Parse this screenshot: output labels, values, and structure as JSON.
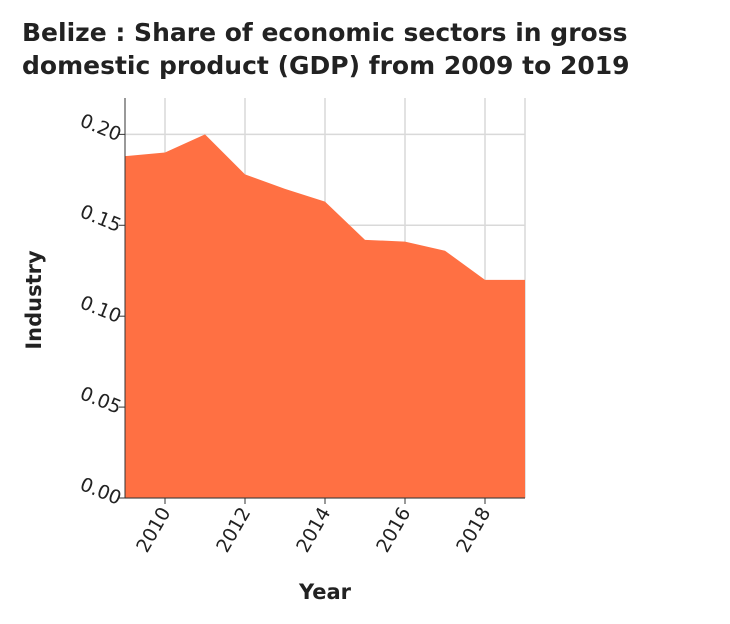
{
  "chart_data": {
    "type": "area",
    "title": "Belize : Share of economic sectors in gross domestic product (GDP) from 2009 to 2019",
    "xlabel": "Year",
    "ylabel": "Industry",
    "x": [
      2009,
      2010,
      2011,
      2012,
      2013,
      2014,
      2015,
      2016,
      2017,
      2018,
      2019
    ],
    "series": [
      {
        "values": [
          0.188,
          0.19,
          0.2,
          0.178,
          0.17,
          0.163,
          0.142,
          0.141,
          0.136,
          0.12,
          0.12
        ]
      }
    ],
    "xlim": [
      2009,
      2019
    ],
    "ylim": [
      0,
      0.22
    ],
    "x_ticks": [
      2010,
      2012,
      2014,
      2016,
      2018
    ],
    "y_ticks": [
      0,
      0.05,
      0.1,
      0.15,
      0.2
    ],
    "y_tick_labels": [
      "0.00",
      "0.05",
      "0.10",
      "0.15",
      "0.20"
    ],
    "grid": true,
    "colors": {
      "area": "#ff7043",
      "grid": "#d9d9d9",
      "axis": "#333333"
    }
  }
}
